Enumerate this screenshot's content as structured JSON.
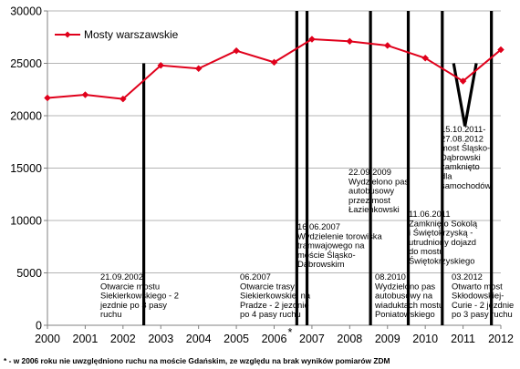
{
  "chart_data": {
    "type": "line",
    "x": [
      "2000",
      "2001",
      "2002",
      "2003",
      "2004",
      "2005",
      "2006",
      "2007",
      "2008",
      "2009",
      "2010",
      "2011",
      "2012"
    ],
    "x_label_markers": [
      "",
      "",
      "",
      "",
      "",
      "",
      "*",
      "",
      "",
      "",
      "",
      "",
      ""
    ],
    "series": [
      {
        "name": "Mosty warszawskie",
        "color": "#e0001b",
        "values": [
          21700,
          22000,
          21600,
          24800,
          24500,
          26200,
          25100,
          27300,
          27100,
          26700,
          25500,
          23300,
          26300
        ]
      }
    ],
    "yticks": [
      "0",
      "5000",
      "10000",
      "15000",
      "20000",
      "25000",
      "30000"
    ],
    "ylim": [
      0,
      30000
    ],
    "grid": true,
    "legend": "top-left",
    "annotations": [
      {
        "x": 2002.55,
        "y_top": 25000,
        "lines": [
          "21.09.2002",
          "Otwarcie mostu",
          "Siekierkowskiego - 2",
          "jezdnie po 3 pasy",
          "ruchu"
        ]
      },
      {
        "x": 2006.6,
        "y_top": 30000,
        "lines": [
          "06.2007",
          "Otwarcie trasy",
          "Siekierkowskiej na",
          "Pradze - 2 jezdnie",
          "po 4 pasy ruchu"
        ]
      },
      {
        "x": 2006.87,
        "y_top": 30000,
        "lines": [
          "16.06.2007",
          "Wydzielenie torowiska",
          "tramwajowego na",
          "moście Śląsko-",
          "Dąbrowskim"
        ]
      },
      {
        "x": 2008.55,
        "y_top": 30000,
        "lines": [
          "22.09.2009",
          "Wydzielono pas",
          "autobusowy",
          "przez most",
          "Łazienkowski"
        ]
      },
      {
        "x": 2009.55,
        "y_top": 30000,
        "lines": [
          "08.2010",
          "Wydzielono pas",
          "autobusowy na",
          "wiaduktach mostu",
          "Poniatowskiego"
        ]
      },
      {
        "x": 2010.45,
        "y_top": 30000,
        "lines": [
          "11.06.2011",
          "Zamknięto Sokolą",
          "i Świętokrzyską -",
          "utrudniony dojazd",
          "do mostu",
          "Świętokrzyskiego"
        ]
      },
      {
        "x": 2011.75,
        "y_top": 30000,
        "lines": [
          "03.2012",
          "Otwarto most",
          "Skłodowskiej-",
          "Curie - 2 jezdnie",
          "po 3 pasy ruchu"
        ]
      }
    ],
    "closure_note": {
      "x_start": 2010.75,
      "x_mid": 2011.05,
      "x_end": 2011.35,
      "y_top": 25000,
      "y_bottom": 19000,
      "lines": [
        "15.10.2011-",
        "27.08.2012",
        "most Śląsko-",
        "Dąbrowski",
        "zamknięto",
        "dla",
        "samochodów"
      ]
    },
    "footnote": "* - w 2006 roku nie uwzględniono ruchu na moście Gdańskim, ze względu na brak wyników pomiarów ZDM"
  }
}
